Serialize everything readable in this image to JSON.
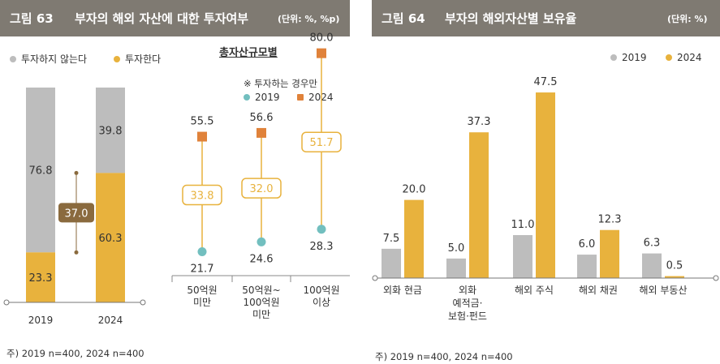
{
  "fig63": {
    "figure_no": "그림 63",
    "title": "부자의 해외 자산에 대한 투자여부",
    "unit": "(단위: %, %p)",
    "legend": [
      "투자하지 않는다",
      "투자한다"
    ],
    "subchart_title": "총자산규모별",
    "subchart_note": "※ 투자하는 경우만",
    "subchart_legend": [
      "2019",
      "2024"
    ],
    "footnote": "주) 2019 n=400, 2024 n=400"
  },
  "fig64": {
    "figure_no": "그림 64",
    "title": "부자의 해외자산별 보유율",
    "unit": "(단위: %)",
    "legend": [
      "2019",
      "2024"
    ],
    "footnote": "주) 2019 n=400, 2024 n=400"
  },
  "colors": {
    "gray": "#bdbdbd",
    "gold": "#e8b23d",
    "teal": "#72bfbf",
    "orange": "#e0823a",
    "brown": "#8a6a3e",
    "header": "#7f7a72"
  },
  "chart_data": [
    {
      "type": "bar",
      "stacked": true,
      "categories": [
        "2019",
        "2024"
      ],
      "series": [
        {
          "name": "투자한다",
          "values": [
            23.3,
            60.3
          ]
        },
        {
          "name": "투자하지 않는다",
          "values": [
            76.8,
            39.8
          ]
        }
      ],
      "annotations": [
        {
          "text": "37.0",
          "between": [
            "2019",
            "2024"
          ]
        }
      ],
      "ylim": [
        0,
        100
      ]
    },
    {
      "type": "scatter",
      "title": "총자산규모별",
      "categories": [
        "50억원\n미만",
        "50억원~\n100억원\n미만",
        "100억원\n이상"
      ],
      "series": [
        {
          "name": "2019",
          "values": [
            21.7,
            24.6,
            28.3
          ]
        },
        {
          "name": "2024",
          "values": [
            55.5,
            56.6,
            80.0
          ]
        }
      ],
      "differences": [
        33.8,
        32.0,
        51.7
      ]
    },
    {
      "type": "bar",
      "categories": [
        "외화 현금",
        "외화\n예적금·\n보험·펀드",
        "해외 주식",
        "해외 채권",
        "해외 부동산"
      ],
      "series": [
        {
          "name": "2019",
          "values": [
            7.5,
            5.0,
            11.0,
            6.0,
            6.3
          ]
        },
        {
          "name": "2024",
          "values": [
            20.0,
            37.3,
            47.5,
            12.3,
            0.5
          ]
        }
      ],
      "ylim": [
        0,
        50
      ]
    }
  ]
}
